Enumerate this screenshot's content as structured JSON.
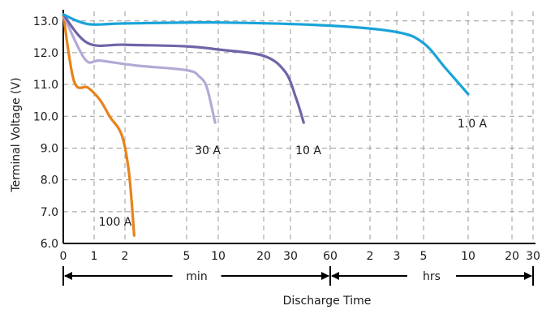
{
  "chart_data": {
    "type": "line",
    "ylabel": "Terminal Voltage (V)",
    "xlabel": "Discharge Time",
    "ylim": [
      6.0,
      13.3
    ],
    "grid": true,
    "y_ticks": [
      "6.0",
      "7.0",
      "8.0",
      "9.0",
      "10.0",
      "11.0",
      "12.0",
      "13.0"
    ],
    "x_ticks": [
      {
        "label": "0",
        "value_min": 0
      },
      {
        "label": "1",
        "value_min": 1
      },
      {
        "label": "2",
        "value_min": 2
      },
      {
        "label": "5",
        "value_min": 5
      },
      {
        "label": "10",
        "value_min": 10
      },
      {
        "label": "20",
        "value_min": 20
      },
      {
        "label": "30",
        "value_min": 30
      },
      {
        "label": "60",
        "value_min": 60
      },
      {
        "label": "2",
        "value_min": 120
      },
      {
        "label": "3",
        "value_min": 180
      },
      {
        "label": "5",
        "value_min": 300
      },
      {
        "label": "10",
        "value_min": 600
      },
      {
        "label": "20",
        "value_min": 1200
      },
      {
        "label": "30",
        "value_min": 1800
      }
    ],
    "ranges": [
      {
        "label": "min",
        "from_min": 0,
        "to_min": 60
      },
      {
        "label": "hrs",
        "from_min": 60,
        "to_min": 1800
      }
    ],
    "series": [
      {
        "name": "100 A",
        "color": "#e8821a",
        "points": [
          [
            0,
            13.2
          ],
          [
            0.35,
            11.1
          ],
          [
            0.8,
            10.9
          ],
          [
            1.2,
            10.5
          ],
          [
            1.5,
            10.0
          ],
          [
            1.9,
            9.4
          ],
          [
            2.2,
            8.2
          ],
          [
            2.45,
            6.25
          ]
        ]
      },
      {
        "name": "30 A",
        "color": "#b4a9d6",
        "points": [
          [
            0,
            13.2
          ],
          [
            0.7,
            11.8
          ],
          [
            1.2,
            11.75
          ],
          [
            2.5,
            11.6
          ],
          [
            5,
            11.45
          ],
          [
            7,
            11.25
          ],
          [
            8.2,
            10.9
          ],
          [
            9.5,
            9.8
          ]
        ]
      },
      {
        "name": "10 A",
        "color": "#7064a8",
        "points": [
          [
            0,
            13.2
          ],
          [
            0.8,
            12.3
          ],
          [
            2,
            12.25
          ],
          [
            5,
            12.2
          ],
          [
            10,
            12.1
          ],
          [
            20,
            11.9
          ],
          [
            28,
            11.4
          ],
          [
            34,
            10.6
          ],
          [
            40,
            9.8
          ]
        ]
      },
      {
        "name": "1.0 A",
        "color": "#1aa3d9",
        "points": [
          [
            0,
            13.2
          ],
          [
            0.8,
            12.9
          ],
          [
            2,
            12.92
          ],
          [
            10,
            12.95
          ],
          [
            60,
            12.85
          ],
          [
            180,
            12.65
          ],
          [
            300,
            12.3
          ],
          [
            450,
            11.5
          ],
          [
            600,
            10.7
          ]
        ]
      }
    ]
  }
}
